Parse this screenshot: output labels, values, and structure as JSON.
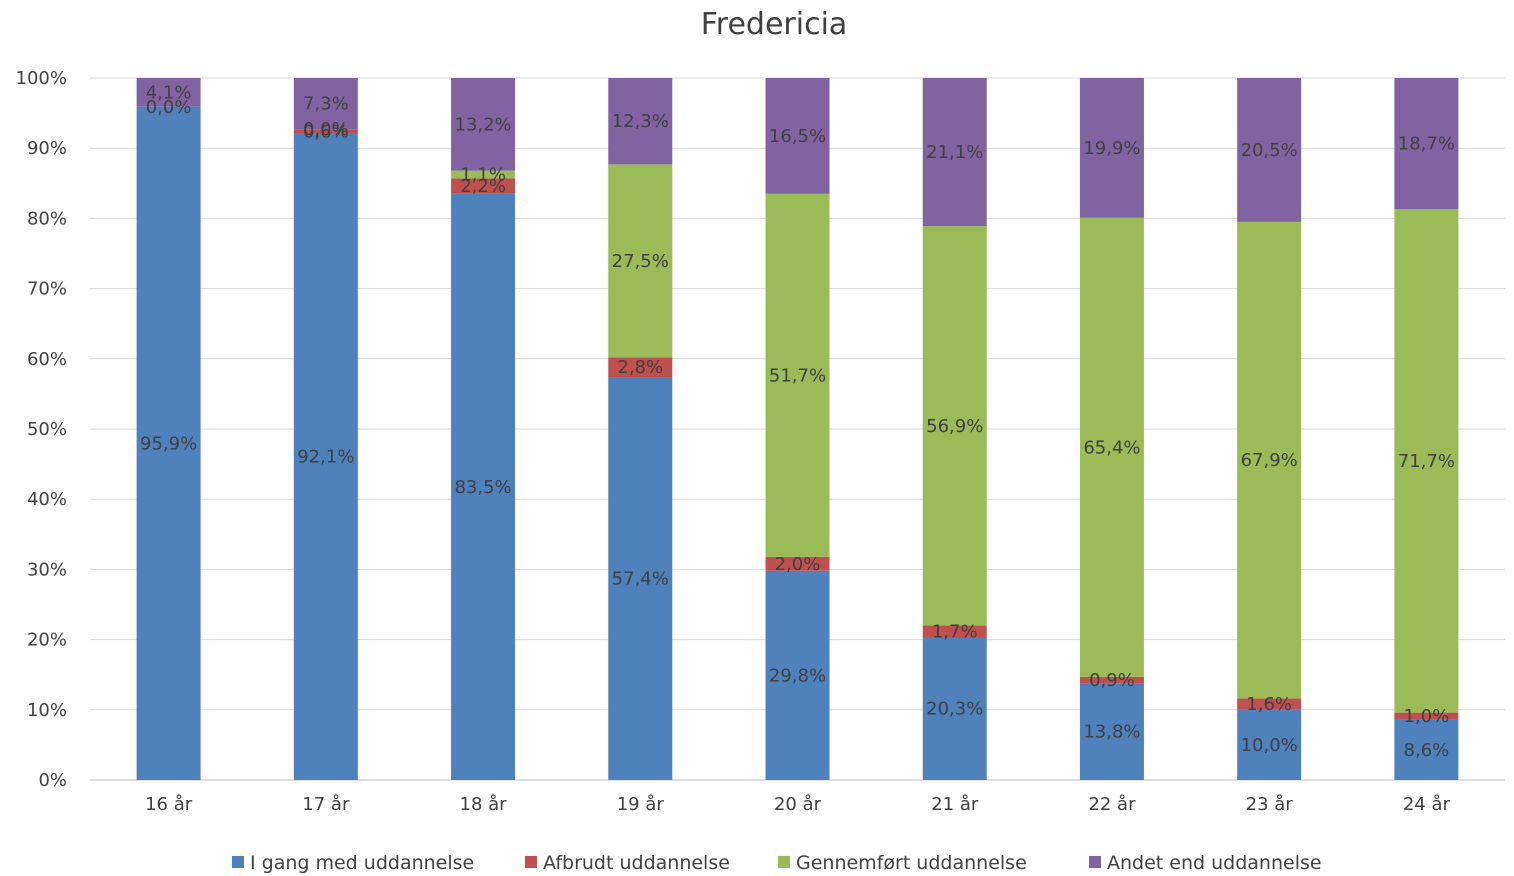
{
  "chart_data": {
    "type": "bar",
    "stacked": true,
    "normalized": true,
    "title": "Fredericia",
    "xlabel": "",
    "ylabel": "",
    "ylim": [
      0,
      100
    ],
    "y_ticks": [
      "0%",
      "10%",
      "20%",
      "30%",
      "40%",
      "50%",
      "60%",
      "70%",
      "80%",
      "90%",
      "100%"
    ],
    "grid": true,
    "legend_position": "bottom",
    "categories": [
      "16 år",
      "17 år",
      "18 år",
      "19 år",
      "20 år",
      "21 år",
      "22 år",
      "23 år",
      "24 år"
    ],
    "series": [
      {
        "name": "I gang med uddannelse",
        "color": "#4f81bd",
        "values": [
          95.9,
          92.1,
          83.5,
          57.4,
          29.8,
          20.3,
          13.8,
          10.0,
          8.6
        ],
        "labels": [
          "95,9%",
          "92,1%",
          "83,5%",
          "57,4%",
          "29,8%",
          "20,3%",
          "13,8%",
          "10,0%",
          "8,6%"
        ]
      },
      {
        "name": "Afbrudt uddannelse",
        "color": "#c0504d",
        "values": [
          0.0,
          0.6,
          2.2,
          2.8,
          2.0,
          1.7,
          0.9,
          1.6,
          1.0
        ],
        "labels": [
          "0,0%",
          "0,6%",
          "2,2%",
          "2,8%",
          "2,0%",
          "1,7%",
          "0,9%",
          "1,6%",
          "1,0%"
        ]
      },
      {
        "name": "Gennemført uddannelse",
        "color": "#9bbb59",
        "values": [
          0.0,
          0.0,
          1.1,
          27.5,
          51.7,
          56.9,
          65.4,
          67.9,
          71.7
        ],
        "labels": [
          "",
          "0,0%",
          "1,1%",
          "27,5%",
          "51,7%",
          "56,9%",
          "65,4%",
          "67,9%",
          "71,7%"
        ]
      },
      {
        "name": "Andet end uddannelse",
        "color": "#8064a2",
        "values": [
          4.1,
          7.3,
          13.2,
          12.3,
          16.5,
          21.1,
          19.9,
          20.5,
          18.7
        ],
        "labels": [
          "4,1%",
          "7,3%",
          "13,2%",
          "12,3%",
          "16,5%",
          "21,1%",
          "19,9%",
          "20,5%",
          "18,7%"
        ]
      }
    ]
  }
}
